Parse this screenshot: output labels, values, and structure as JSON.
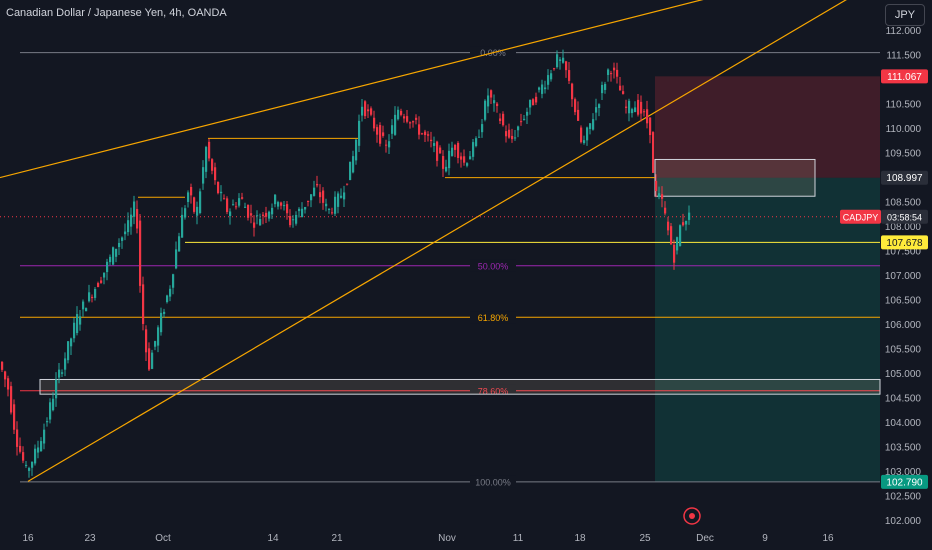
{
  "header": {
    "title": "Canadian Dollar / Japanese Yen, 4h, OANDA"
  },
  "currency_button": "JPY",
  "price_labels": {
    "tp_top": "111.067",
    "entry": "108.997",
    "symbol": "CADJPY",
    "countdown": "03:58:54",
    "support": "107.678",
    "tp_bottom": "102.790"
  },
  "colors": {
    "background": "#131722",
    "up_candle": "#26a69a",
    "down_candle": "#f23645",
    "trendline": "#f7a600",
    "fib_50": "#9c27b0",
    "fib_78": "#f23645",
    "stop_zone": "#f23645",
    "target_zone": "#089981",
    "support_line": "#ffeb3b"
  },
  "chart_data": {
    "type": "candlestick",
    "title": "Canadian Dollar / Japanese Yen, 4h, OANDA",
    "xlabel": "",
    "ylabel": "",
    "ylim": [
      102.0,
      112.5
    ],
    "y_ticks": [
      "112.000",
      "111.500",
      "111.000",
      "110.500",
      "110.000",
      "109.500",
      "109.000",
      "108.500",
      "108.000",
      "107.500",
      "107.000",
      "106.500",
      "106.000",
      "105.500",
      "105.000",
      "104.500",
      "104.000",
      "103.500",
      "103.000",
      "102.500",
      "102.000"
    ],
    "x_ticks": [
      "16",
      "23",
      "Oct",
      "14",
      "21",
      "Nov",
      "11",
      "18",
      "25",
      "Dec",
      "9",
      "16"
    ],
    "price_path": [
      {
        "x": 0,
        "y": 105.3
      },
      {
        "x": 10,
        "y": 104.7
      },
      {
        "x": 18,
        "y": 103.7
      },
      {
        "x": 28,
        "y": 103.0
      },
      {
        "x": 38,
        "y": 103.4
      },
      {
        "x": 48,
        "y": 104.0
      },
      {
        "x": 58,
        "y": 104.8
      },
      {
        "x": 68,
        "y": 105.4
      },
      {
        "x": 80,
        "y": 106.2
      },
      {
        "x": 92,
        "y": 106.6
      },
      {
        "x": 104,
        "y": 107.0
      },
      {
        "x": 118,
        "y": 107.6
      },
      {
        "x": 130,
        "y": 108.0
      },
      {
        "x": 138,
        "y": 108.5
      },
      {
        "x": 143,
        "y": 106.4
      },
      {
        "x": 150,
        "y": 105.1
      },
      {
        "x": 160,
        "y": 105.9
      },
      {
        "x": 172,
        "y": 106.8
      },
      {
        "x": 182,
        "y": 108.0
      },
      {
        "x": 190,
        "y": 108.7
      },
      {
        "x": 198,
        "y": 108.2
      },
      {
        "x": 208,
        "y": 109.6
      },
      {
        "x": 218,
        "y": 108.8
      },
      {
        "x": 230,
        "y": 108.3
      },
      {
        "x": 242,
        "y": 108.6
      },
      {
        "x": 255,
        "y": 108.1
      },
      {
        "x": 268,
        "y": 108.3
      },
      {
        "x": 280,
        "y": 108.6
      },
      {
        "x": 292,
        "y": 108.1
      },
      {
        "x": 305,
        "y": 108.4
      },
      {
        "x": 318,
        "y": 108.8
      },
      {
        "x": 330,
        "y": 108.3
      },
      {
        "x": 342,
        "y": 108.6
      },
      {
        "x": 354,
        "y": 109.3
      },
      {
        "x": 364,
        "y": 110.5
      },
      {
        "x": 375,
        "y": 110.1
      },
      {
        "x": 388,
        "y": 109.6
      },
      {
        "x": 400,
        "y": 110.4
      },
      {
        "x": 412,
        "y": 110.2
      },
      {
        "x": 424,
        "y": 109.9
      },
      {
        "x": 436,
        "y": 109.6
      },
      {
        "x": 446,
        "y": 109.2
      },
      {
        "x": 456,
        "y": 109.7
      },
      {
        "x": 466,
        "y": 109.3
      },
      {
        "x": 478,
        "y": 109.7
      },
      {
        "x": 490,
        "y": 110.7
      },
      {
        "x": 500,
        "y": 110.3
      },
      {
        "x": 512,
        "y": 109.7
      },
      {
        "x": 524,
        "y": 110.2
      },
      {
        "x": 536,
        "y": 110.6
      },
      {
        "x": 548,
        "y": 111.0
      },
      {
        "x": 558,
        "y": 111.4
      },
      {
        "x": 566,
        "y": 111.3
      },
      {
        "x": 575,
        "y": 110.6
      },
      {
        "x": 584,
        "y": 109.6
      },
      {
        "x": 594,
        "y": 110.2
      },
      {
        "x": 604,
        "y": 110.8
      },
      {
        "x": 612,
        "y": 111.3
      },
      {
        "x": 620,
        "y": 110.9
      },
      {
        "x": 628,
        "y": 110.4
      },
      {
        "x": 636,
        "y": 110.5
      },
      {
        "x": 645,
        "y": 110.3
      },
      {
        "x": 652,
        "y": 110.0
      },
      {
        "x": 656,
        "y": 108.7
      },
      {
        "x": 664,
        "y": 108.5
      },
      {
        "x": 670,
        "y": 107.9
      },
      {
        "x": 676,
        "y": 107.4
      },
      {
        "x": 682,
        "y": 108.0
      },
      {
        "x": 688,
        "y": 108.2
      }
    ],
    "trend_lines": [
      {
        "name": "upper channel",
        "from": [
          0,
          109.0
        ],
        "to": [
          735,
          112.8
        ]
      },
      {
        "name": "lower channel",
        "from": [
          28,
          102.8
        ],
        "to": [
          852,
          112.7
        ]
      }
    ],
    "horizontal_levels": [
      {
        "label": "",
        "y": 109.8,
        "x_from": 208,
        "x_to": 358
      },
      {
        "label": "",
        "y": 108.6,
        "x_from": 138,
        "x_to": 185
      },
      {
        "label": "",
        "y": 109.0,
        "x_from": 445,
        "x_to": 655
      },
      {
        "label": "",
        "y": 107.678,
        "x_from": 185,
        "x_to": 880
      }
    ],
    "fibonacci": [
      {
        "label": "0.00%",
        "y": 111.55
      },
      {
        "label": "50.00%",
        "y": 107.2
      },
      {
        "label": "61.80%",
        "y": 106.15
      },
      {
        "label": "78.60%",
        "y": 104.65
      },
      {
        "label": "100.00%",
        "y": 102.79
      }
    ],
    "zones": [
      {
        "name": "demand",
        "y1": 104.58,
        "y2": 104.88,
        "x_from": 40,
        "x_to": 880
      },
      {
        "name": "supply",
        "y1": 108.62,
        "y2": 109.37,
        "x_from": 655,
        "x_to": 815
      }
    ],
    "position": {
      "entry": 108.997,
      "stop": 111.067,
      "target": 102.79,
      "x_from": 655,
      "x_to": 880
    }
  }
}
